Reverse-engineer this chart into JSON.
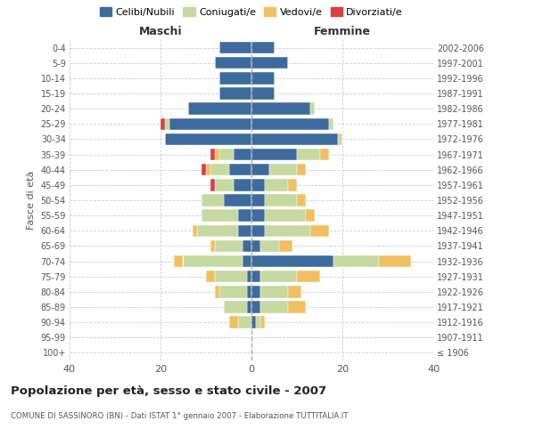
{
  "age_groups": [
    "100+",
    "95-99",
    "90-94",
    "85-89",
    "80-84",
    "75-79",
    "70-74",
    "65-69",
    "60-64",
    "55-59",
    "50-54",
    "45-49",
    "40-44",
    "35-39",
    "30-34",
    "25-29",
    "20-24",
    "15-19",
    "10-14",
    "5-9",
    "0-4"
  ],
  "birth_years": [
    "≤ 1906",
    "1907-1911",
    "1912-1916",
    "1917-1921",
    "1922-1926",
    "1927-1931",
    "1932-1936",
    "1937-1941",
    "1942-1946",
    "1947-1951",
    "1952-1956",
    "1957-1961",
    "1962-1966",
    "1967-1971",
    "1972-1976",
    "1977-1981",
    "1982-1986",
    "1987-1991",
    "1992-1996",
    "1997-2001",
    "2002-2006"
  ],
  "males": {
    "celibi": [
      0,
      0,
      0,
      1,
      1,
      1,
      2,
      2,
      3,
      3,
      6,
      4,
      5,
      4,
      19,
      18,
      14,
      7,
      7,
      8,
      7
    ],
    "coniugati": [
      0,
      0,
      3,
      5,
      6,
      7,
      13,
      6,
      9,
      8,
      5,
      4,
      4,
      3,
      0,
      1,
      0,
      0,
      0,
      0,
      0
    ],
    "vedovi": [
      0,
      0,
      2,
      0,
      1,
      2,
      2,
      1,
      1,
      0,
      0,
      0,
      1,
      1,
      0,
      0,
      0,
      0,
      0,
      0,
      0
    ],
    "divorziati": [
      0,
      0,
      0,
      0,
      0,
      0,
      0,
      0,
      0,
      0,
      0,
      1,
      1,
      1,
      0,
      1,
      0,
      0,
      0,
      0,
      0
    ]
  },
  "females": {
    "nubili": [
      0,
      0,
      1,
      2,
      2,
      2,
      18,
      2,
      3,
      3,
      3,
      3,
      4,
      10,
      19,
      17,
      13,
      5,
      5,
      8,
      5
    ],
    "coniugate": [
      0,
      0,
      1,
      6,
      6,
      8,
      10,
      4,
      10,
      9,
      7,
      5,
      6,
      5,
      1,
      1,
      1,
      0,
      0,
      0,
      0
    ],
    "vedove": [
      0,
      0,
      1,
      4,
      3,
      5,
      7,
      3,
      4,
      2,
      2,
      2,
      2,
      2,
      0,
      0,
      0,
      0,
      0,
      0,
      0
    ],
    "divorziate": [
      0,
      0,
      0,
      0,
      0,
      0,
      0,
      0,
      0,
      0,
      0,
      0,
      0,
      0,
      0,
      0,
      0,
      0,
      0,
      0,
      0
    ]
  },
  "colors": {
    "celibi": "#3d6b9e",
    "coniugati": "#c5d9a0",
    "vedovi": "#f0c060",
    "divorziati": "#d94040"
  },
  "title": "Popolazione per età, sesso e stato civile - 2007",
  "subtitle": "COMUNE DI SASSINORO (BN) - Dati ISTAT 1° gennaio 2007 - Elaborazione TUTTITALIA.IT",
  "xlabel_left": "Maschi",
  "xlabel_right": "Femmine",
  "ylabel_left": "Fasce di età",
  "xlim": 40,
  "background_color": "#ffffff"
}
